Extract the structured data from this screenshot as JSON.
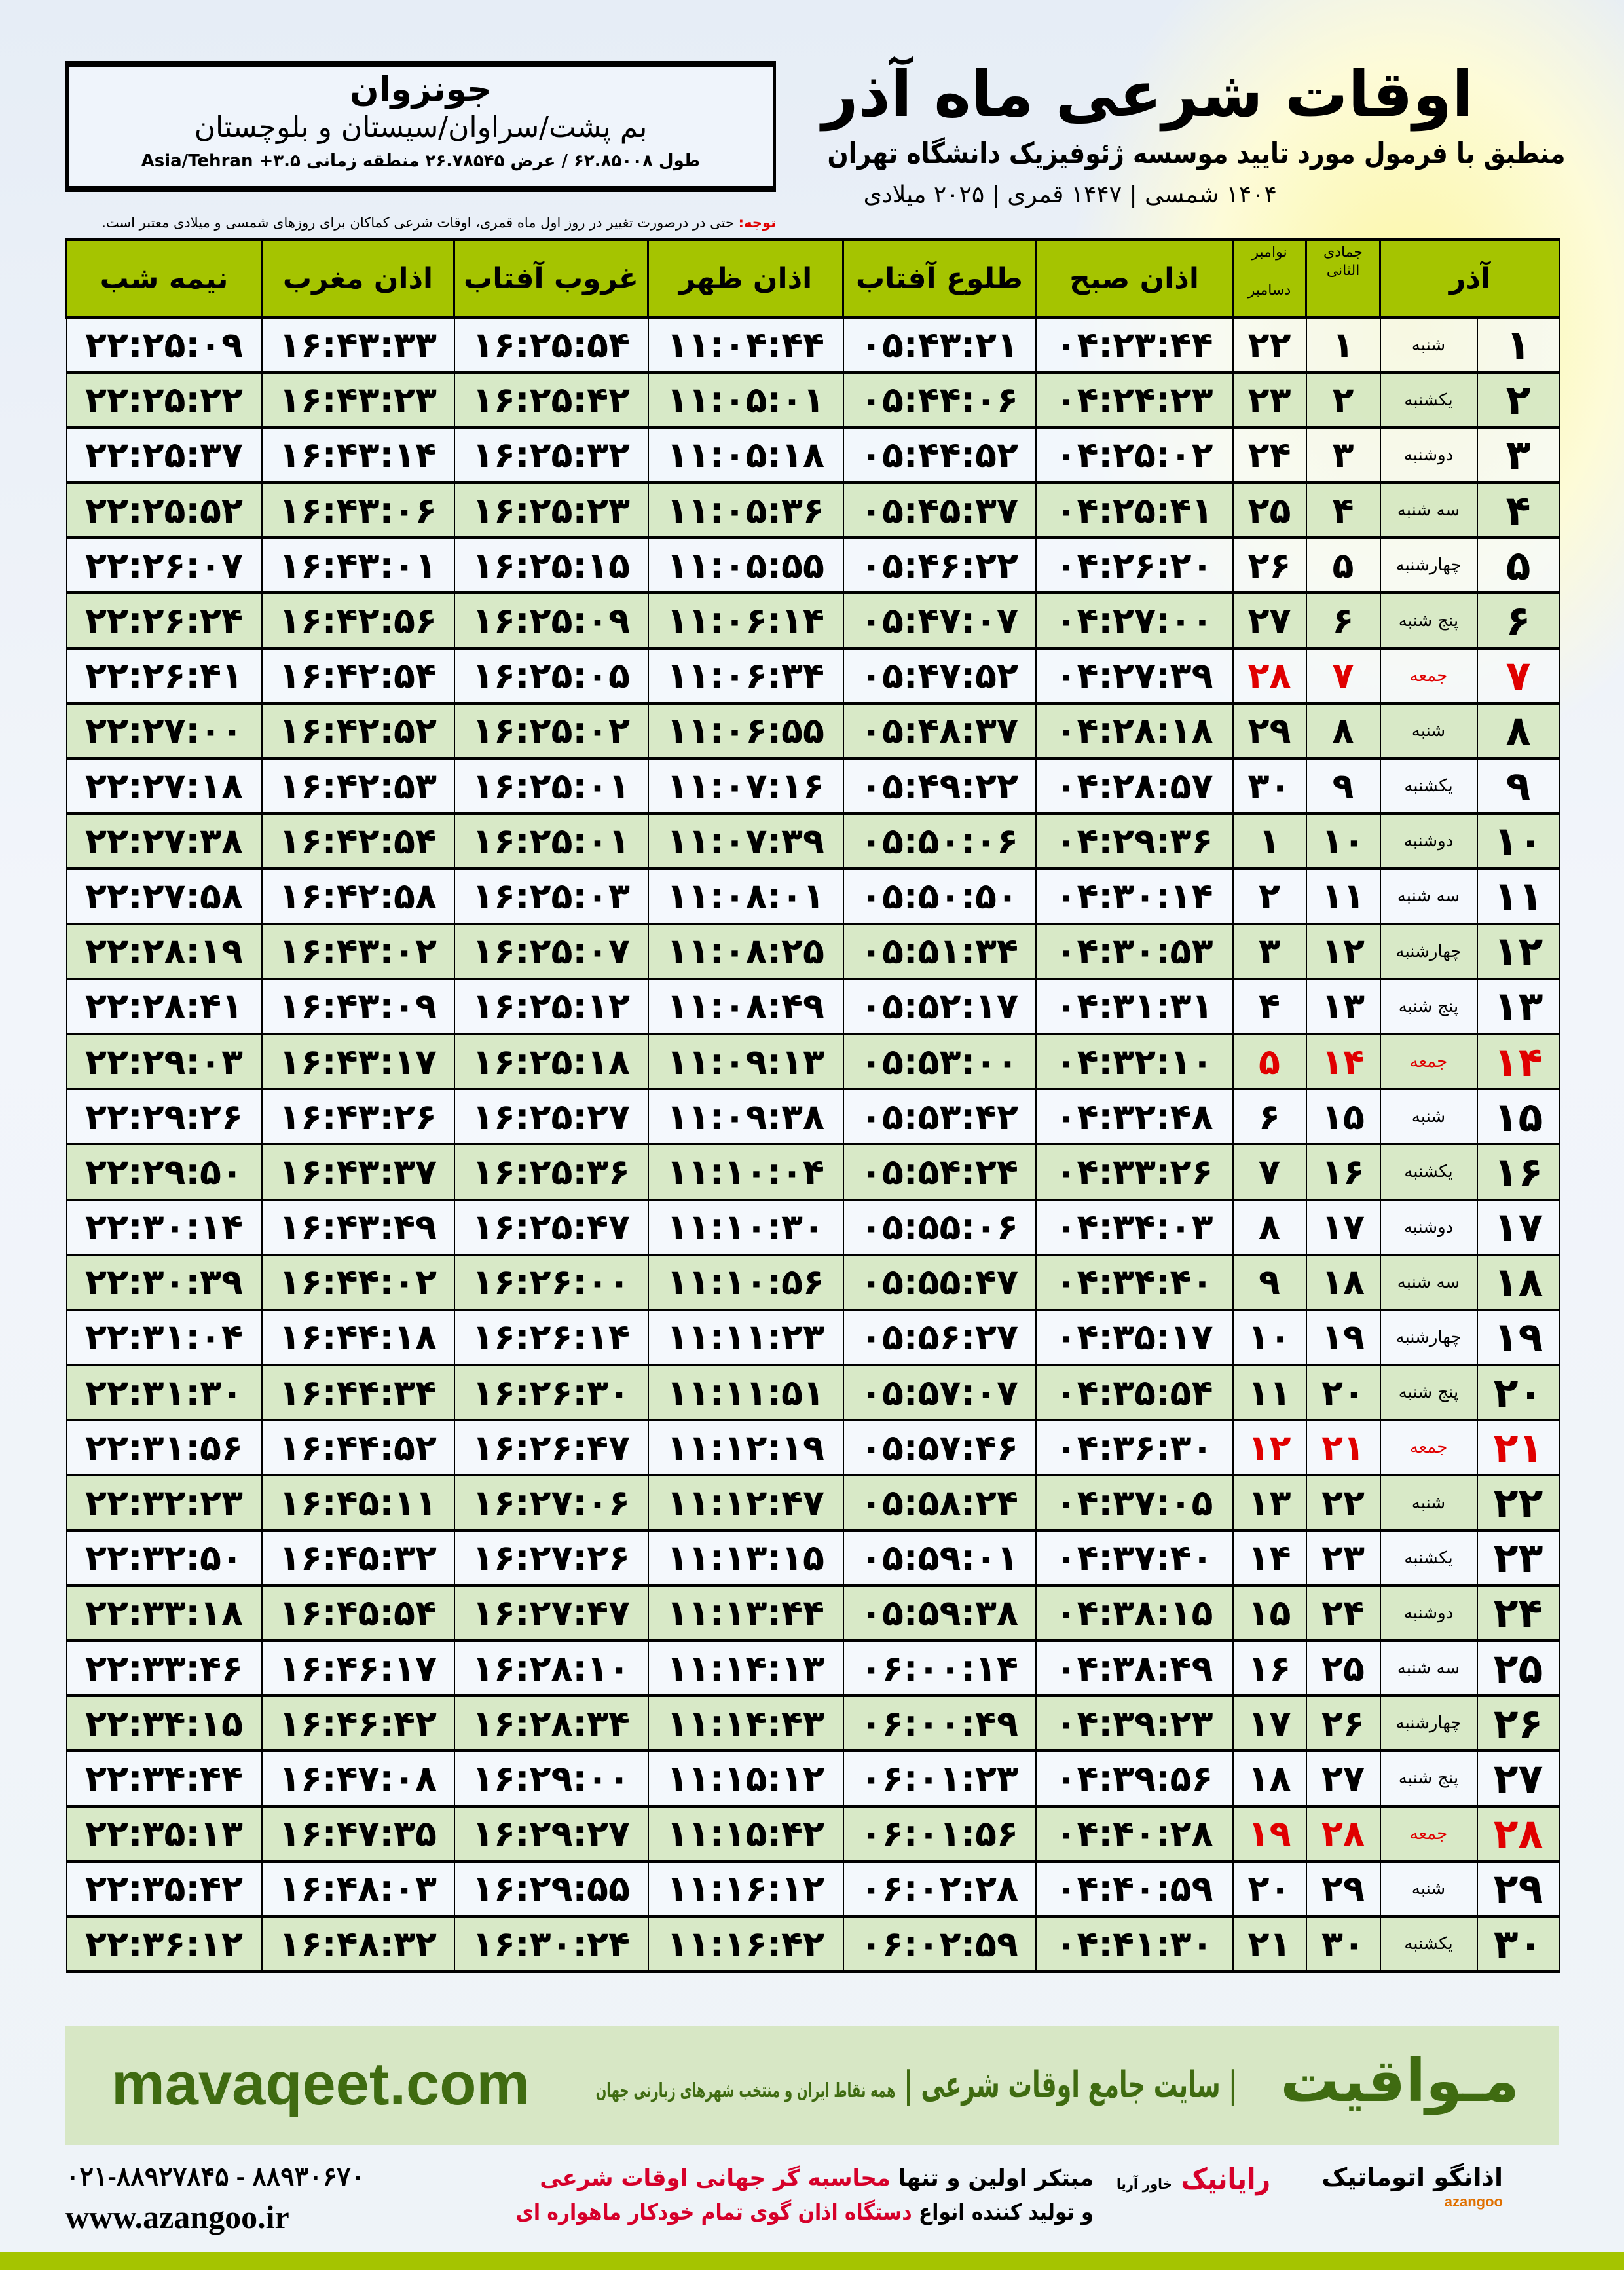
{
  "info": {
    "city": "جونزوان",
    "region": "بم پشت/سراوان/سیستان و بلوچستان",
    "coords": "طول ۶۲.۸۵۰۰۸ / عرض ۲۶.۷۸۵۴۵ منطقه زمانی Asia/Tehran +۳.۵"
  },
  "header": {
    "title": "اوقات شرعی ماه آذر",
    "subtitle": "منطبق با فرمول مورد تایید موسسه ژئوفیزیک دانشگاه تهران",
    "years": "۱۴۰۴ شمسی | ۱۴۴۷ قمری | ۲۰۲۵ میلادی"
  },
  "note": {
    "label": "توجه:",
    "text": " حتی در درصورت تغییر در روز اول ماه قمری، اوقات شرعی کماکان برای روزهای شمسی و میلادی معتبر است."
  },
  "columns": {
    "azar": "آذر",
    "hijri": "جمادی الثانی",
    "greg_top": "نوامبر",
    "greg_bottom": "دسامبر",
    "fajr": "اذان صبح",
    "sunrise": "طلوع آفتاب",
    "dhuhr": "اذان ظهر",
    "sunset": "غروب آفتاب",
    "maghrib": "اذان مغرب",
    "midnight": "نیمه شب"
  },
  "colors": {
    "header": "#a5c400",
    "friday": "#e00000",
    "row_alt": "#d6e8c4"
  },
  "rows": [
    [
      "۱",
      "شنبه",
      "۱",
      "۲۲",
      "۰۴:۲۳:۴۴",
      "۰۵:۴۳:۲۱",
      "۱۱:۰۴:۴۴",
      "۱۶:۲۵:۵۴",
      "۱۶:۴۳:۳۳",
      "۲۲:۲۵:۰۹"
    ],
    [
      "۲",
      "یکشنبه",
      "۲",
      "۲۳",
      "۰۴:۲۴:۲۳",
      "۰۵:۴۴:۰۶",
      "۱۱:۰۵:۰۱",
      "۱۶:۲۵:۴۲",
      "۱۶:۴۳:۲۳",
      "۲۲:۲۵:۲۲"
    ],
    [
      "۳",
      "دوشنبه",
      "۳",
      "۲۴",
      "۰۴:۲۵:۰۲",
      "۰۵:۴۴:۵۲",
      "۱۱:۰۵:۱۸",
      "۱۶:۲۵:۳۲",
      "۱۶:۴۳:۱۴",
      "۲۲:۲۵:۳۷"
    ],
    [
      "۴",
      "سه شنبه",
      "۴",
      "۲۵",
      "۰۴:۲۵:۴۱",
      "۰۵:۴۵:۳۷",
      "۱۱:۰۵:۳۶",
      "۱۶:۲۵:۲۳",
      "۱۶:۴۳:۰۶",
      "۲۲:۲۵:۵۲"
    ],
    [
      "۵",
      "چهارشنبه",
      "۵",
      "۲۶",
      "۰۴:۲۶:۲۰",
      "۰۵:۴۶:۲۲",
      "۱۱:۰۵:۵۵",
      "۱۶:۲۵:۱۵",
      "۱۶:۴۳:۰۱",
      "۲۲:۲۶:۰۷"
    ],
    [
      "۶",
      "پنج شنبه",
      "۶",
      "۲۷",
      "۰۴:۲۷:۰۰",
      "۰۵:۴۷:۰۷",
      "۱۱:۰۶:۱۴",
      "۱۶:۲۵:۰۹",
      "۱۶:۴۲:۵۶",
      "۲۲:۲۶:۲۴"
    ],
    [
      "۷",
      "جمعه",
      "۷",
      "۲۸",
      "۰۴:۲۷:۳۹",
      "۰۵:۴۷:۵۲",
      "۱۱:۰۶:۳۴",
      "۱۶:۲۵:۰۵",
      "۱۶:۴۲:۵۴",
      "۲۲:۲۶:۴۱"
    ],
    [
      "۸",
      "شنبه",
      "۸",
      "۲۹",
      "۰۴:۲۸:۱۸",
      "۰۵:۴۸:۳۷",
      "۱۱:۰۶:۵۵",
      "۱۶:۲۵:۰۲",
      "۱۶:۴۲:۵۲",
      "۲۲:۲۷:۰۰"
    ],
    [
      "۹",
      "یکشنبه",
      "۹",
      "۳۰",
      "۰۴:۲۸:۵۷",
      "۰۵:۴۹:۲۲",
      "۱۱:۰۷:۱۶",
      "۱۶:۲۵:۰۱",
      "۱۶:۴۲:۵۳",
      "۲۲:۲۷:۱۸"
    ],
    [
      "۱۰",
      "دوشنبه",
      "۱۰",
      "۱",
      "۰۴:۲۹:۳۶",
      "۰۵:۵۰:۰۶",
      "۱۱:۰۷:۳۹",
      "۱۶:۲۵:۰۱",
      "۱۶:۴۲:۵۴",
      "۲۲:۲۷:۳۸"
    ],
    [
      "۱۱",
      "سه شنبه",
      "۱۱",
      "۲",
      "۰۴:۳۰:۱۴",
      "۰۵:۵۰:۵۰",
      "۱۱:۰۸:۰۱",
      "۱۶:۲۵:۰۳",
      "۱۶:۴۲:۵۸",
      "۲۲:۲۷:۵۸"
    ],
    [
      "۱۲",
      "چهارشنبه",
      "۱۲",
      "۳",
      "۰۴:۳۰:۵۳",
      "۰۵:۵۱:۳۴",
      "۱۱:۰۸:۲۵",
      "۱۶:۲۵:۰۷",
      "۱۶:۴۳:۰۲",
      "۲۲:۲۸:۱۹"
    ],
    [
      "۱۳",
      "پنج شنبه",
      "۱۳",
      "۴",
      "۰۴:۳۱:۳۱",
      "۰۵:۵۲:۱۷",
      "۱۱:۰۸:۴۹",
      "۱۶:۲۵:۱۲",
      "۱۶:۴۳:۰۹",
      "۲۲:۲۸:۴۱"
    ],
    [
      "۱۴",
      "جمعه",
      "۱۴",
      "۵",
      "۰۴:۳۲:۱۰",
      "۰۵:۵۳:۰۰",
      "۱۱:۰۹:۱۳",
      "۱۶:۲۵:۱۸",
      "۱۶:۴۳:۱۷",
      "۲۲:۲۹:۰۳"
    ],
    [
      "۱۵",
      "شنبه",
      "۱۵",
      "۶",
      "۰۴:۳۲:۴۸",
      "۰۵:۵۳:۴۲",
      "۱۱:۰۹:۳۸",
      "۱۶:۲۵:۲۷",
      "۱۶:۴۳:۲۶",
      "۲۲:۲۹:۲۶"
    ],
    [
      "۱۶",
      "یکشنبه",
      "۱۶",
      "۷",
      "۰۴:۳۳:۲۶",
      "۰۵:۵۴:۲۴",
      "۱۱:۱۰:۰۴",
      "۱۶:۲۵:۳۶",
      "۱۶:۴۳:۳۷",
      "۲۲:۲۹:۵۰"
    ],
    [
      "۱۷",
      "دوشنبه",
      "۱۷",
      "۸",
      "۰۴:۳۴:۰۳",
      "۰۵:۵۵:۰۶",
      "۱۱:۱۰:۳۰",
      "۱۶:۲۵:۴۷",
      "۱۶:۴۳:۴۹",
      "۲۲:۳۰:۱۴"
    ],
    [
      "۱۸",
      "سه شنبه",
      "۱۸",
      "۹",
      "۰۴:۳۴:۴۰",
      "۰۵:۵۵:۴۷",
      "۱۱:۱۰:۵۶",
      "۱۶:۲۶:۰۰",
      "۱۶:۴۴:۰۲",
      "۲۲:۳۰:۳۹"
    ],
    [
      "۱۹",
      "چهارشنبه",
      "۱۹",
      "۱۰",
      "۰۴:۳۵:۱۷",
      "۰۵:۵۶:۲۷",
      "۱۱:۱۱:۲۳",
      "۱۶:۲۶:۱۴",
      "۱۶:۴۴:۱۸",
      "۲۲:۳۱:۰۴"
    ],
    [
      "۲۰",
      "پنج شنبه",
      "۲۰",
      "۱۱",
      "۰۴:۳۵:۵۴",
      "۰۵:۵۷:۰۷",
      "۱۱:۱۱:۵۱",
      "۱۶:۲۶:۳۰",
      "۱۶:۴۴:۳۴",
      "۲۲:۳۱:۳۰"
    ],
    [
      "۲۱",
      "جمعه",
      "۲۱",
      "۱۲",
      "۰۴:۳۶:۳۰",
      "۰۵:۵۷:۴۶",
      "۱۱:۱۲:۱۹",
      "۱۶:۲۶:۴۷",
      "۱۶:۴۴:۵۲",
      "۲۲:۳۱:۵۶"
    ],
    [
      "۲۲",
      "شنبه",
      "۲۲",
      "۱۳",
      "۰۴:۳۷:۰۵",
      "۰۵:۵۸:۲۴",
      "۱۱:۱۲:۴۷",
      "۱۶:۲۷:۰۶",
      "۱۶:۴۵:۱۱",
      "۲۲:۳۲:۲۳"
    ],
    [
      "۲۳",
      "یکشنبه",
      "۲۳",
      "۱۴",
      "۰۴:۳۷:۴۰",
      "۰۵:۵۹:۰۱",
      "۱۱:۱۳:۱۵",
      "۱۶:۲۷:۲۶",
      "۱۶:۴۵:۳۲",
      "۲۲:۳۲:۵۰"
    ],
    [
      "۲۴",
      "دوشنبه",
      "۲۴",
      "۱۵",
      "۰۴:۳۸:۱۵",
      "۰۵:۵۹:۳۸",
      "۱۱:۱۳:۴۴",
      "۱۶:۲۷:۴۷",
      "۱۶:۴۵:۵۴",
      "۲۲:۳۳:۱۸"
    ],
    [
      "۲۵",
      "سه شنبه",
      "۲۵",
      "۱۶",
      "۰۴:۳۸:۴۹",
      "۰۶:۰۰:۱۴",
      "۱۱:۱۴:۱۳",
      "۱۶:۲۸:۱۰",
      "۱۶:۴۶:۱۷",
      "۲۲:۳۳:۴۶"
    ],
    [
      "۲۶",
      "چهارشنبه",
      "۲۶",
      "۱۷",
      "۰۴:۳۹:۲۳",
      "۰۶:۰۰:۴۹",
      "۱۱:۱۴:۴۳",
      "۱۶:۲۸:۳۴",
      "۱۶:۴۶:۴۲",
      "۲۲:۳۴:۱۵"
    ],
    [
      "۲۷",
      "پنج شنبه",
      "۲۷",
      "۱۸",
      "۰۴:۳۹:۵۶",
      "۰۶:۰۱:۲۳",
      "۱۱:۱۵:۱۲",
      "۱۶:۲۹:۰۰",
      "۱۶:۴۷:۰۸",
      "۲۲:۳۴:۴۴"
    ],
    [
      "۲۸",
      "جمعه",
      "۲۸",
      "۱۹",
      "۰۴:۴۰:۲۸",
      "۰۶:۰۱:۵۶",
      "۱۱:۱۵:۴۲",
      "۱۶:۲۹:۲۷",
      "۱۶:۴۷:۳۵",
      "۲۲:۳۵:۱۳"
    ],
    [
      "۲۹",
      "شنبه",
      "۲۹",
      "۲۰",
      "۰۴:۴۰:۵۹",
      "۰۶:۰۲:۲۸",
      "۱۱:۱۶:۱۲",
      "۱۶:۲۹:۵۵",
      "۱۶:۴۸:۰۳",
      "۲۲:۳۵:۴۲"
    ],
    [
      "۳۰",
      "یکشنبه",
      "۳۰",
      "۲۱",
      "۰۴:۴۱:۳۰",
      "۰۶:۰۲:۵۹",
      "۱۱:۱۶:۴۲",
      "۱۶:۳۰:۲۴",
      "۱۶:۴۸:۳۲",
      "۲۲:۳۶:۱۲"
    ]
  ],
  "banner": {
    "site": "mavaqeet.com",
    "brand": "مـواقیت",
    "tagline": "| سایت جامع اوقات شرعی |",
    "tagline_small": "همه نقاط ایران و منتخب شهرهای زیارتی جهان"
  },
  "footer": {
    "phones": "۰۲۱-۸۸۹۲۷۸۴۵ - ۸۸۹۳۰۶۷۰",
    "www": "www.azangoo.ir",
    "promo_1a": "مبتکر اولین و تنها ",
    "promo_1b": "محاسبه گر جهانی اوقات شرعی",
    "promo_2a": "و تولید کننده انواع ",
    "promo_2b": "دستگاه اذان گوی تمام خودکار ماهواره ای",
    "logo_rayanik": "رایانیک",
    "logo_rayanik_sub": "خاور آریا",
    "logo_azangoo": "اذانگو اتوماتیک",
    "logo_azangoo_en": "azangoo"
  }
}
